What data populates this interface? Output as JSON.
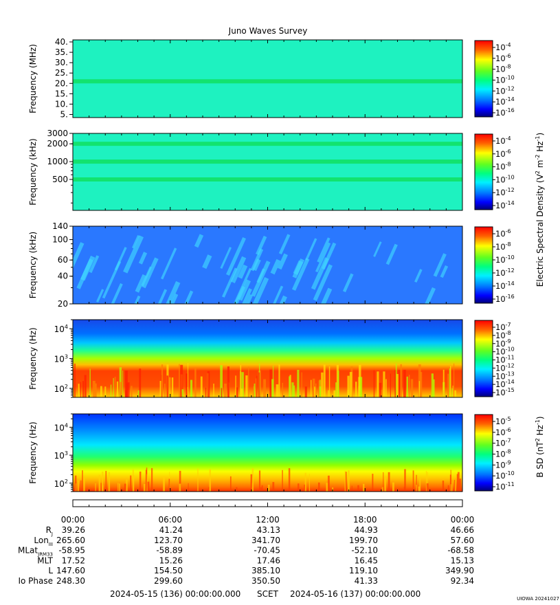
{
  "title": "Juno Waves Survey",
  "panels": [
    {
      "ylabel": "Frequency (MHz)",
      "yticks": [
        "40.",
        "35.",
        "30.",
        "25.",
        "20.",
        "15.",
        "10.",
        "5."
      ],
      "cbar_ticks": [
        {
          "base": "10",
          "exp": "-4"
        },
        {
          "base": "10",
          "exp": "-6"
        },
        {
          "base": "10",
          "exp": "-8"
        },
        {
          "base": "10",
          "exp": "-10"
        },
        {
          "base": "10",
          "exp": "-12"
        },
        {
          "base": "10",
          "exp": "-14"
        },
        {
          "base": "10",
          "exp": "-16"
        }
      ]
    },
    {
      "ylabel": "Frequency (kHz)",
      "yticks": [
        "3000",
        "2000",
        "1000",
        "500"
      ],
      "cbar_ticks": [
        {
          "base": "10",
          "exp": "-4"
        },
        {
          "base": "10",
          "exp": "-6"
        },
        {
          "base": "10",
          "exp": "-8"
        },
        {
          "base": "10",
          "exp": "-10"
        },
        {
          "base": "10",
          "exp": "-12"
        },
        {
          "base": "10",
          "exp": "-14"
        }
      ]
    },
    {
      "ylabel": "Frequency (kHz)",
      "yticks": [
        "140",
        "100",
        "60",
        "40",
        "20"
      ],
      "cbar_ticks": [
        {
          "base": "10",
          "exp": "-6"
        },
        {
          "base": "10",
          "exp": "-8"
        },
        {
          "base": "10",
          "exp": "-10"
        },
        {
          "base": "10",
          "exp": "-12"
        },
        {
          "base": "10",
          "exp": "-14"
        },
        {
          "base": "10",
          "exp": "-16"
        }
      ]
    },
    {
      "ylabel": "Frequency (Hz)",
      "yticks": [
        {
          "base": "10",
          "exp": "4"
        },
        {
          "base": "10",
          "exp": "3"
        },
        {
          "base": "10",
          "exp": "2"
        }
      ],
      "cbar_ticks": [
        {
          "base": "10",
          "exp": "-7"
        },
        {
          "base": "10",
          "exp": "-8"
        },
        {
          "base": "10",
          "exp": "-9"
        },
        {
          "base": "10",
          "exp": "-10"
        },
        {
          "base": "10",
          "exp": "-11"
        },
        {
          "base": "10",
          "exp": "-12"
        },
        {
          "base": "10",
          "exp": "-13"
        },
        {
          "base": "10",
          "exp": "-14"
        },
        {
          "base": "10",
          "exp": "-15"
        }
      ]
    },
    {
      "ylabel": "Frequency (Hz)",
      "yticks": [
        {
          "base": "10",
          "exp": "4"
        },
        {
          "base": "10",
          "exp": "3"
        },
        {
          "base": "10",
          "exp": "2"
        }
      ],
      "cbar_ticks": [
        {
          "base": "10",
          "exp": "-5"
        },
        {
          "base": "10",
          "exp": "-6"
        },
        {
          "base": "10",
          "exp": "-7"
        },
        {
          "base": "10",
          "exp": "-8"
        },
        {
          "base": "10",
          "exp": "-9"
        },
        {
          "base": "10",
          "exp": "-10"
        },
        {
          "base": "10",
          "exp": "-11"
        }
      ]
    }
  ],
  "cbar_label_electric": "Electric Spectral Density (V2 m-2 Hz-1)",
  "cbar_label_electric_parts": {
    "a": "Electric Spectral Density (V",
    "b": "2",
    "c": " m",
    "d": "-2",
    "e": " Hz",
    "f": "-1",
    "g": ")"
  },
  "cbar_label_magnetic": "B SD (nT2 Hz-1)",
  "cbar_label_magnetic_parts": {
    "a": "B SD (nT",
    "b": "2",
    "c": " Hz",
    "d": "-1",
    "e": ")"
  },
  "chart_data": {
    "type": "heatmap",
    "title": "Juno Waves Survey",
    "x": {
      "label": "SCET",
      "start": "2024-05-15 (136) 00:00:00.000",
      "end": "2024-05-16 (137) 00:00:00.000",
      "tick_labels": [
        "00:00",
        "06:00",
        "12:00",
        "18:00",
        "00:00"
      ]
    },
    "ephemeris": {
      "rows": [
        {
          "label": "R",
          "sub": "J",
          "values": [
            "39.26",
            "41.24",
            "43.13",
            "44.93",
            "46.66"
          ]
        },
        {
          "label": "Lon",
          "sub": "III",
          "values": [
            "265.60",
            "123.70",
            "341.70",
            "199.70",
            "57.60"
          ]
        },
        {
          "label": "MLat",
          "sub": "JRM33",
          "values": [
            "-58.95",
            "-58.89",
            "-70.45",
            "-52.10",
            "-68.58"
          ]
        },
        {
          "label": "MLT",
          "sub": "",
          "values": [
            "17.52",
            "15.26",
            "17.46",
            "16.45",
            "15.13"
          ]
        },
        {
          "label": "L",
          "sub": "",
          "values": [
            "147.60",
            "154.50",
            "385.10",
            "119.10",
            "349.90"
          ]
        },
        {
          "label": "Io Phase",
          "sub": "",
          "values": [
            "248.30",
            "299.60",
            "350.50",
            "41.33",
            "92.34"
          ]
        }
      ]
    },
    "panels": [
      {
        "ylabel": "Frequency (MHz)",
        "yscale": "linear",
        "ylim": [
          3.5,
          41
        ],
        "cbar": "Electric Spectral Density",
        "clim": [
          "1e-17",
          "1e-4"
        ],
        "features": [
          {
            "type": "band",
            "freq": 21,
            "level": "1e-11"
          }
        ],
        "background_level": "1e-12"
      },
      {
        "ylabel": "Frequency (kHz)",
        "yscale": "log",
        "ylim": [
          150,
          3000
        ],
        "cbar": "Electric Spectral Density",
        "clim": [
          "1e-15",
          "1e-3"
        ],
        "features": [
          {
            "type": "band",
            "freq": 2000,
            "level": "1e-11"
          },
          {
            "type": "band",
            "freq": 1000,
            "level": "1e-11"
          },
          {
            "type": "band",
            "freq": 500,
            "level": "1e-11.5"
          }
        ],
        "background_level": "1e-12"
      },
      {
        "ylabel": "Frequency (kHz)",
        "yscale": "log",
        "ylim": [
          20,
          140
        ],
        "cbar": "Electric Spectral Density",
        "clim": [
          "1e-16",
          "1e-6"
        ],
        "features": [
          {
            "type": "bursts",
            "level": "1e-13"
          }
        ],
        "background_level": "1e-14"
      },
      {
        "ylabel": "Frequency (Hz)",
        "yscale": "log",
        "ylim": [
          50,
          20000
        ],
        "cbar": "Electric Spectral Density",
        "clim": [
          "1e-15",
          "1e-7"
        ],
        "features": [
          {
            "type": "broadband",
            "fmax": 700,
            "level": "1e-8"
          }
        ],
        "background_level": "1e-13"
      },
      {
        "ylabel": "Frequency (Hz)",
        "yscale": "log",
        "ylim": [
          50,
          30000
        ],
        "cbar": "B SD",
        "clim": [
          "1e-11",
          "1e-4"
        ],
        "features": [
          {
            "type": "gradient",
            "top_level": "1e-10",
            "bottom_level": "1e-5"
          }
        ],
        "background_level": "1e-9"
      }
    ]
  },
  "footer": {
    "start": "2024-05-15 (136) 00:00:00.000",
    "scet": "SCET",
    "end": "2024-05-16 (137) 00:00:00.000"
  },
  "credit": "UIOWA 20241027"
}
